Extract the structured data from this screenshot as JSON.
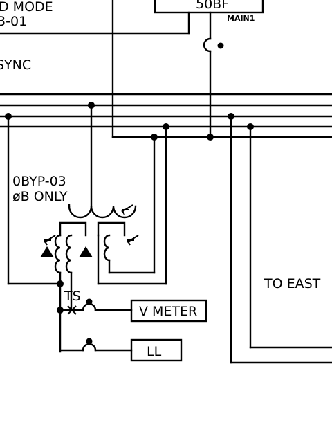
{
  "labels": {
    "mode_line": "D MODE",
    "id_line": "3-01",
    "sync": "SYNC",
    "breaker": "50BF",
    "main": "MAIN1",
    "transformer_id": "0BYP-03",
    "phase_note": "øB ONLY",
    "test_switch": "TS",
    "meter": "V METER",
    "load": "LL",
    "destination": "TO EAST"
  }
}
